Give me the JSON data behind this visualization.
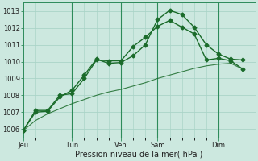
{
  "background_color": "#cce8df",
  "grid_color": "#aad4c8",
  "line_color": "#1a6b2a",
  "title": "Pression niveau de la mer( hPa )",
  "ylim": [
    1005.5,
    1013.5
  ],
  "yticks": [
    1006,
    1007,
    1008,
    1009,
    1010,
    1011,
    1012,
    1013
  ],
  "xlim": [
    0,
    19
  ],
  "xlabel_labels": [
    "Jeu",
    "Lun",
    "Ven",
    "Sam",
    "Dim",
    ""
  ],
  "vline_positions": [
    4,
    8,
    11,
    16
  ],
  "series1_x": [
    0,
    1,
    2,
    3,
    4,
    5,
    6,
    7,
    8,
    9,
    10,
    11,
    12,
    13,
    14,
    15,
    16,
    17,
    18
  ],
  "series1_y": [
    1005.9,
    1007.1,
    1007.1,
    1008.0,
    1008.1,
    1009.0,
    1010.1,
    1010.05,
    1010.05,
    1010.9,
    1011.45,
    1012.1,
    1012.45,
    1012.05,
    1011.65,
    1010.1,
    1010.2,
    1010.05,
    1009.55
  ],
  "series2_x": [
    0,
    1,
    2,
    3,
    4,
    5,
    6,
    7,
    8,
    9,
    10,
    11,
    12,
    13,
    14,
    15,
    16,
    17,
    18
  ],
  "series2_y": [
    1005.9,
    1007.0,
    1007.05,
    1007.9,
    1008.3,
    1009.2,
    1010.15,
    1009.9,
    1009.95,
    1010.35,
    1011.0,
    1012.5,
    1013.05,
    1012.8,
    1012.05,
    1011.0,
    1010.45,
    1010.15,
    1010.1
  ],
  "series3_x": [
    0,
    1,
    2,
    3,
    4,
    5,
    6,
    7,
    8,
    9,
    10,
    11,
    12,
    13,
    14,
    15,
    16,
    17,
    18
  ],
  "series3_y": [
    1005.9,
    1006.5,
    1006.9,
    1007.2,
    1007.5,
    1007.75,
    1008.0,
    1008.2,
    1008.35,
    1008.55,
    1008.75,
    1009.0,
    1009.2,
    1009.4,
    1009.6,
    1009.75,
    1009.85,
    1009.9,
    1009.55
  ],
  "marker": "D",
  "marker_size": 2.5,
  "line_width": 1.0,
  "vline_color": "#2d8b5a",
  "label_fontsize": 6.0,
  "title_fontsize": 7.0
}
